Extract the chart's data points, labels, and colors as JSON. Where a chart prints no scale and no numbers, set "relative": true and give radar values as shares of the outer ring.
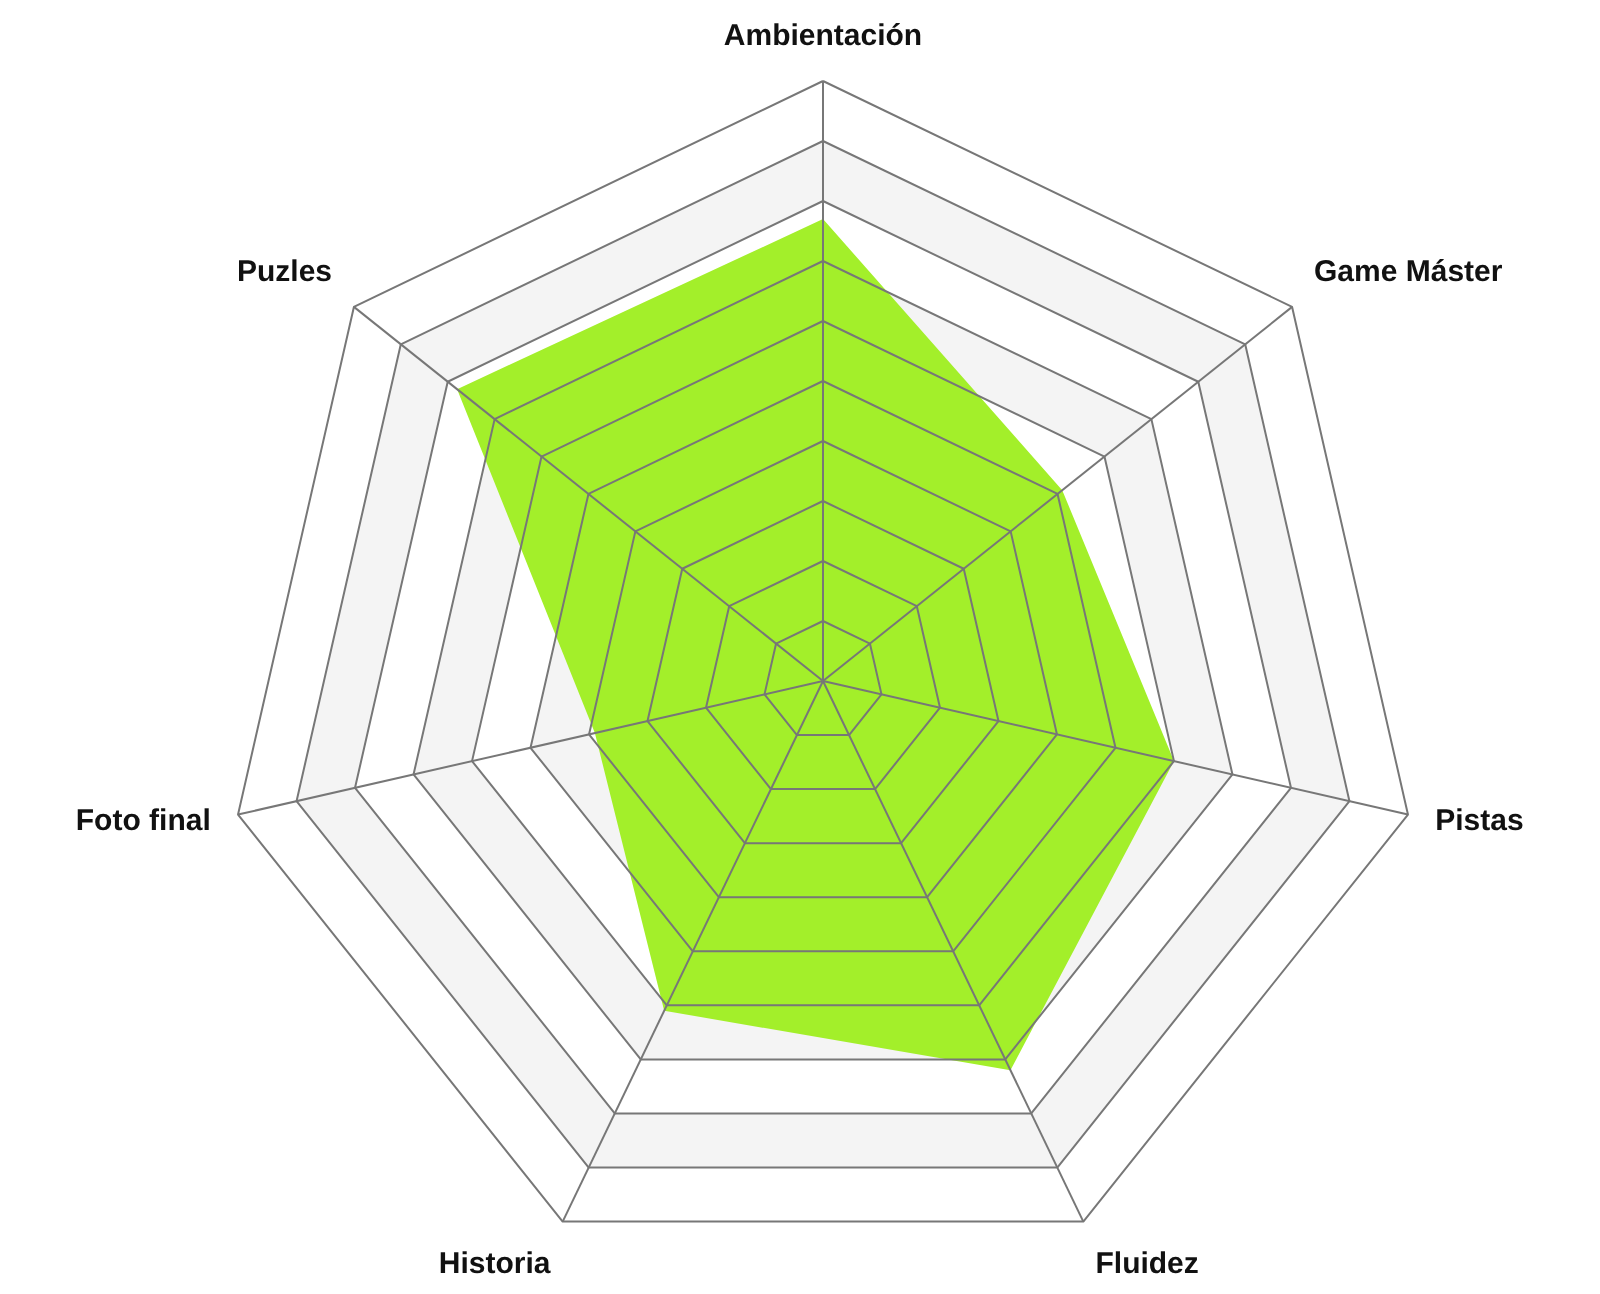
{
  "chart_data": {
    "type": "radar",
    "relative": true,
    "grid": true,
    "categories": [
      "Ambientación",
      "Game Máster",
      "Pistas",
      "Fluidez",
      "Historia",
      "Foto final",
      "Puzles"
    ],
    "series": [
      {
        "color": "#a3ef2a",
        "values": [
          0.77,
          0.51,
          0.6,
          0.72,
          0.61,
          0.39,
          0.78
        ]
      }
    ]
  }
}
